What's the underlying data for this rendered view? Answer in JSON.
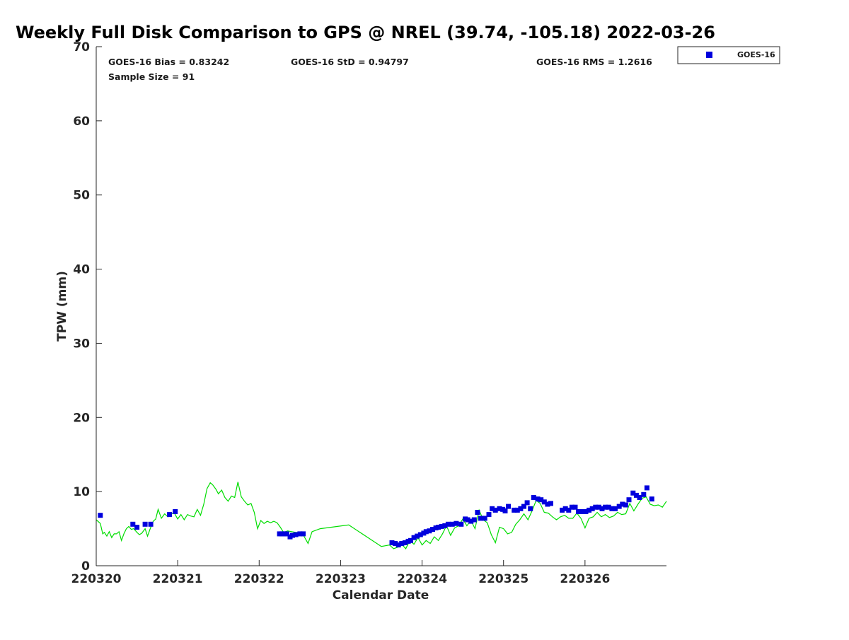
{
  "chart_data": {
    "type": "scatter",
    "title": "Weekly Full Disk Comparison to GPS @ NREL (39.74, -105.18) 2022-03-26",
    "xlabel": "Calendar Date",
    "ylabel": "TPW (mm)",
    "xlim": [
      0,
      7
    ],
    "ylim": [
      0,
      70
    ],
    "x_ticks": [
      {
        "value": 0,
        "label": "220320"
      },
      {
        "value": 1,
        "label": "220321"
      },
      {
        "value": 2,
        "label": "220322"
      },
      {
        "value": 3,
        "label": "220323"
      },
      {
        "value": 4,
        "label": "220324"
      },
      {
        "value": 5,
        "label": "220325"
      },
      {
        "value": 6,
        "label": "220326"
      }
    ],
    "y_ticks": [
      {
        "value": 0,
        "label": "0"
      },
      {
        "value": 10,
        "label": "10"
      },
      {
        "value": 20,
        "label": "20"
      },
      {
        "value": 30,
        "label": "30"
      },
      {
        "value": 40,
        "label": "40"
      },
      {
        "value": 50,
        "label": "50"
      },
      {
        "value": 60,
        "label": "60"
      },
      {
        "value": 70,
        "label": "70"
      }
    ],
    "grid": false,
    "legend": {
      "position": "top-right",
      "entries": [
        "GOES-16"
      ]
    },
    "stats": {
      "bias": "GOES-16 Bias = 0.83242",
      "std": "GOES-16 StD = 0.94797",
      "rms": "GOES-16 RMS = 1.2616",
      "sample": "Sample Size = 91"
    },
    "colors": {
      "goes": "#0000dd",
      "gps": "#00dd00",
      "text": "#1a1a1a"
    },
    "series": [
      {
        "name": "GOES-16",
        "kind": "markers",
        "x": [
          0.05,
          0.45,
          0.5,
          0.6,
          0.67,
          0.9,
          0.97,
          2.25,
          2.28,
          2.31,
          2.34,
          2.38,
          2.41,
          2.45,
          2.5,
          2.54,
          3.63,
          3.67,
          3.71,
          3.75,
          3.79,
          3.83,
          3.86,
          3.9,
          3.94,
          3.98,
          4.02,
          4.05,
          4.09,
          4.13,
          4.17,
          4.2,
          4.24,
          4.28,
          4.32,
          4.37,
          4.42,
          4.48,
          4.53,
          4.56,
          4.6,
          4.64,
          4.68,
          4.72,
          4.77,
          4.82,
          4.86,
          4.9,
          4.95,
          4.99,
          5.02,
          5.06,
          5.13,
          5.17,
          5.21,
          5.25,
          5.29,
          5.33,
          5.37,
          5.42,
          5.46,
          5.5,
          5.54,
          5.58,
          5.72,
          5.76,
          5.8,
          5.84,
          5.88,
          5.92,
          5.97,
          6.01,
          6.05,
          6.09,
          6.13,
          6.17,
          6.21,
          6.25,
          6.29,
          6.33,
          6.37,
          6.42,
          6.46,
          6.5,
          6.54,
          6.59,
          6.63,
          6.67,
          6.72,
          6.76,
          6.82
        ],
        "y": [
          6.8,
          5.6,
          5.2,
          5.6,
          5.6,
          6.9,
          7.3,
          4.3,
          4.3,
          4.3,
          4.3,
          3.9,
          4.1,
          4.2,
          4.3,
          4.3,
          3.1,
          3.0,
          2.8,
          3.0,
          3.1,
          3.3,
          3.4,
          3.8,
          4.0,
          4.2,
          4.4,
          4.6,
          4.7,
          4.9,
          5.1,
          5.2,
          5.3,
          5.4,
          5.6,
          5.6,
          5.7,
          5.6,
          6.3,
          6.2,
          6.0,
          6.2,
          7.2,
          6.4,
          6.4,
          6.9,
          7.7,
          7.5,
          7.7,
          7.6,
          7.4,
          8.0,
          7.5,
          7.5,
          7.7,
          8.0,
          8.5,
          7.7,
          9.2,
          9.0,
          8.9,
          8.6,
          8.3,
          8.4,
          7.5,
          7.7,
          7.5,
          7.9,
          7.9,
          7.3,
          7.3,
          7.3,
          7.5,
          7.7,
          7.9,
          7.9,
          7.7,
          7.9,
          7.9,
          7.7,
          7.7,
          8.0,
          8.3,
          8.2,
          8.9,
          9.8,
          9.5,
          9.2,
          9.6,
          10.5,
          9.0
        ]
      },
      {
        "name": "GPS",
        "kind": "line",
        "x": [
          0.0,
          0.05,
          0.08,
          0.1,
          0.13,
          0.16,
          0.19,
          0.22,
          0.25,
          0.28,
          0.31,
          0.34,
          0.37,
          0.4,
          0.43,
          0.46,
          0.5,
          0.53,
          0.56,
          0.6,
          0.63,
          0.67,
          0.7,
          0.73,
          0.76,
          0.8,
          0.84,
          0.88,
          0.92,
          0.96,
          1.0,
          1.04,
          1.08,
          1.12,
          1.16,
          1.2,
          1.24,
          1.28,
          1.32,
          1.36,
          1.4,
          1.43,
          1.47,
          1.5,
          1.54,
          1.58,
          1.62,
          1.66,
          1.7,
          1.74,
          1.78,
          1.82,
          1.86,
          1.9,
          1.94,
          1.98,
          2.02,
          2.06,
          2.1,
          2.14,
          2.18,
          2.22,
          2.26,
          2.3,
          2.35,
          2.4,
          2.45,
          2.5,
          2.55,
          2.6,
          2.65,
          2.7,
          2.75,
          3.1,
          3.5,
          3.55,
          3.6,
          3.65,
          3.7,
          3.75,
          3.8,
          3.85,
          3.9,
          3.95,
          4.0,
          4.05,
          4.1,
          4.15,
          4.2,
          4.25,
          4.3,
          4.35,
          4.4,
          4.45,
          4.5,
          4.55,
          4.6,
          4.65,
          4.7,
          4.75,
          4.8,
          4.85,
          4.9,
          4.95,
          5.0,
          5.05,
          5.1,
          5.15,
          5.2,
          5.25,
          5.3,
          5.35,
          5.4,
          5.45,
          5.5,
          5.55,
          5.6,
          5.65,
          5.7,
          5.75,
          5.8,
          5.85,
          5.9,
          5.95,
          6.0,
          6.05,
          6.1,
          6.15,
          6.2,
          6.25,
          6.3,
          6.35,
          6.4,
          6.45,
          6.5,
          6.55,
          6.6,
          6.65,
          6.7,
          6.75,
          6.8,
          6.85,
          6.9,
          6.95,
          7.0
        ],
        "y": [
          6.2,
          5.7,
          4.3,
          4.5,
          4.0,
          4.6,
          3.8,
          4.3,
          4.3,
          4.6,
          3.4,
          4.3,
          5.0,
          5.3,
          4.9,
          5.0,
          4.5,
          4.2,
          4.4,
          5.0,
          4.0,
          5.2,
          6.0,
          6.3,
          7.6,
          6.4,
          7.0,
          6.6,
          7.0,
          7.1,
          6.3,
          6.9,
          6.2,
          6.9,
          6.7,
          6.6,
          7.6,
          6.8,
          8.3,
          10.4,
          11.2,
          10.9,
          10.3,
          9.7,
          10.2,
          9.2,
          8.7,
          9.4,
          9.2,
          11.3,
          9.3,
          8.7,
          8.2,
          8.4,
          7.2,
          5.0,
          6.1,
          5.7,
          6.0,
          5.8,
          6.0,
          5.8,
          5.2,
          4.5,
          4.7,
          4.6,
          4.5,
          4.5,
          4.0,
          3.0,
          4.6,
          4.8,
          5.0,
          5.5,
          2.6,
          2.7,
          2.8,
          2.3,
          2.5,
          2.9,
          2.3,
          3.4,
          2.9,
          3.8,
          2.8,
          3.4,
          3.0,
          3.9,
          3.4,
          4.3,
          5.4,
          4.1,
          5.1,
          5.4,
          6.3,
          5.4,
          6.1,
          5.0,
          7.5,
          6.2,
          5.8,
          4.2,
          3.1,
          5.2,
          5.0,
          4.3,
          4.5,
          5.6,
          6.2,
          7.0,
          6.2,
          7.4,
          8.8,
          8.4,
          7.2,
          7.1,
          6.6,
          6.2,
          6.6,
          6.8,
          6.4,
          6.4,
          7.1,
          6.4,
          5.1,
          6.4,
          6.6,
          7.2,
          6.6,
          6.9,
          6.5,
          6.7,
          7.2,
          6.9,
          7.0,
          8.4,
          7.4,
          8.3,
          9.1,
          9.3,
          8.3,
          8.1,
          8.2,
          7.9,
          8.7
        ]
      }
    ]
  }
}
